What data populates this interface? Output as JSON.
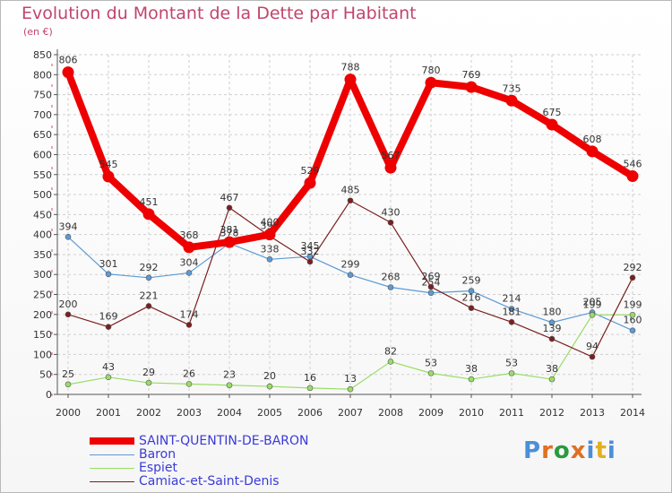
{
  "title": "Evolution du Montant de la Dette par Habitant",
  "unit": "(en €)",
  "logo": "Proxiti",
  "chart_data": {
    "type": "line",
    "x": [
      "2000",
      "2001",
      "2002",
      "2003",
      "2004",
      "2005",
      "2006",
      "2007",
      "2008",
      "2009",
      "2010",
      "2011",
      "2012",
      "2013",
      "2014"
    ],
    "ylim": [
      0,
      850
    ],
    "yticks": [
      0,
      50,
      100,
      150,
      200,
      250,
      300,
      350,
      400,
      450,
      500,
      550,
      600,
      650,
      700,
      750,
      800,
      850
    ],
    "grid": true,
    "legend_position": "bottom-left",
    "series": [
      {
        "name": "SAINT-QUENTIN-DE-BARON",
        "color": "#ee0000",
        "values": [
          806,
          545,
          451,
          368,
          381,
          400,
          529,
          788,
          567,
          780,
          769,
          735,
          675,
          608,
          546
        ],
        "labels": [
          "806",
          "545",
          "451",
          "368",
          "381",
          "400",
          "529",
          "788",
          "567",
          "780",
          "769",
          "735",
          "675",
          "608",
          "546"
        ]
      },
      {
        "name": "Baron",
        "color": "#5b9bd5",
        "values": [
          394,
          301,
          292,
          304,
          378,
          338,
          345,
          299,
          268,
          254,
          259,
          214,
          180,
          205,
          160
        ],
        "labels": [
          "394",
          "301",
          "292",
          "304",
          "378",
          "338",
          "345",
          "299",
          "268",
          "254",
          "259",
          "214",
          "180",
          "205",
          "160"
        ]
      },
      {
        "name": "Espiet",
        "color": "#99dd66",
        "values": [
          25,
          43,
          29,
          26,
          23,
          20,
          16,
          13,
          82,
          53,
          38,
          53,
          38,
          199,
          199
        ],
        "labels": [
          "25",
          "43",
          "29",
          "26",
          "23",
          "20",
          "16",
          "13",
          "82",
          "53",
          "38",
          "53",
          "38",
          "199",
          "199"
        ]
      },
      {
        "name": "Camiac-et-Saint-Denis",
        "color": "#7b1f1f",
        "values": [
          200,
          169,
          221,
          174,
          467,
          396,
          332,
          485,
          430,
          269,
          216,
          181,
          139,
          94,
          292
        ],
        "labels": [
          "200",
          "169",
          "221",
          "174",
          "467",
          "396",
          "332",
          "485",
          "430",
          "269",
          "216",
          "181",
          "139",
          "94",
          "292"
        ]
      }
    ]
  }
}
